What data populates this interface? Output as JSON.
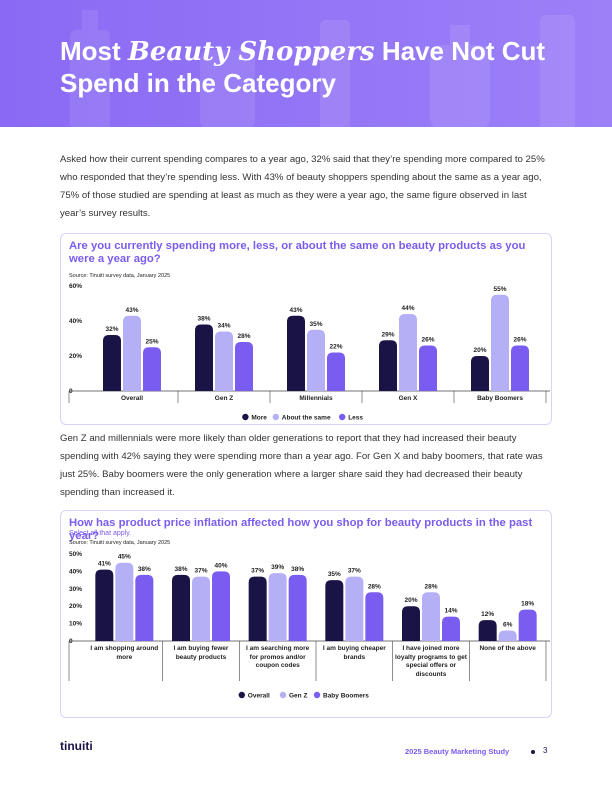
{
  "header": {
    "title": {
      "before": "Most",
      "emphasis": "Beauty Shoppers",
      "after": "Have Not Cut Spend in the Category"
    }
  },
  "paragraphs": [
    "Asked how their current spending compares to a year ago, 32% said that they’re spending more compared to 25% who responded that they’re spending less. With 43% of beauty shoppers spending about the same as a year ago, 75% of those studied are spending at least as much as they were a year ago, the same figure observed in last year’s survey results.",
    "Gen Z and millennials were more likely than older generations to report that they had increased their beauty spending with 42% saying they were spending more than a year ago. For Gen X and baby boomers, that rate was just 25%. Baby boomers were the only generation where a larger share said they had decreased their beauty spending than increased it."
  ],
  "chart_data": [
    {
      "type": "bar",
      "title": "Are you currently spending more, less, or about the same on beauty products as you were a year ago?",
      "source": "Source: Tinuiti survey data, January 2025",
      "categories": [
        "Overall",
        "Gen Z",
        "Millennials",
        "Gen X",
        "Baby Boomers"
      ],
      "series": [
        {
          "name": "More",
          "color": "#1a1446",
          "values": [
            32,
            38,
            43,
            29,
            20
          ],
          "value_labels": [
            "32%",
            "38%",
            "43%",
            "29%",
            "20%"
          ]
        },
        {
          "name": "About the same",
          "color": "#b5aff6",
          "values": [
            43,
            34,
            35,
            44,
            55
          ],
          "value_labels": [
            "43%",
            "34%",
            "35%",
            "44%",
            "55%"
          ]
        },
        {
          "name": "Less",
          "color": "#7b5cf0",
          "values": [
            25,
            28,
            22,
            26,
            26
          ],
          "value_labels": [
            "25%",
            "28%",
            "22%",
            "26%",
            "26%"
          ]
        }
      ],
      "ylim": [
        0,
        60
      ],
      "yticks": [
        0,
        {
          "value": 20,
          "label": "20%"
        },
        {
          "value": 40,
          "label": "40%"
        },
        {
          "value": 60,
          "label": "60%"
        }
      ],
      "legend": "bottom"
    },
    {
      "type": "bar",
      "title": "How has product price inflation affected how you shop for beauty products in the past year?",
      "subtitle": "Select all that apply.",
      "source": "Source: Tinuiti survey data, January 2025",
      "categories": [
        "I am shopping around more",
        "I am buying fewer beauty products",
        "I am searching more for promos and/or coupon codes",
        "I am buying cheaper brands",
        "I have joined more loyalty programs to get special offers or discounts",
        "None of the above"
      ],
      "series": [
        {
          "name": "Overall",
          "color": "#1a1446",
          "values": [
            41,
            38,
            37,
            35,
            20,
            12
          ],
          "value_labels": [
            "41%",
            "38%",
            "37%",
            "35%",
            "20%",
            "12%"
          ]
        },
        {
          "name": "Gen Z",
          "color": "#b5aff6",
          "values": [
            45,
            37,
            39,
            37,
            28,
            6
          ],
          "value_labels": [
            "45%",
            "37%",
            "39%",
            "37%",
            "28%",
            "6%"
          ]
        },
        {
          "name": "Baby Boomers",
          "color": "#7b5cf0",
          "values": [
            38,
            40,
            38,
            28,
            14,
            18
          ],
          "value_labels": [
            "38%",
            "40%",
            "38%",
            "28%",
            "14%",
            "18%"
          ]
        }
      ],
      "ylim": [
        0,
        50
      ],
      "yticks": [
        0,
        {
          "value": 10,
          "label": "10%"
        },
        {
          "value": 20,
          "label": "20%"
        },
        {
          "value": 30,
          "label": "30%"
        },
        {
          "value": 40,
          "label": "40%"
        },
        {
          "value": 50,
          "label": "50%"
        }
      ],
      "legend": "bottom"
    }
  ],
  "footer": {
    "logo": "tinuiti",
    "study": "2025 Beauty Marketing Study",
    "page": "3"
  }
}
